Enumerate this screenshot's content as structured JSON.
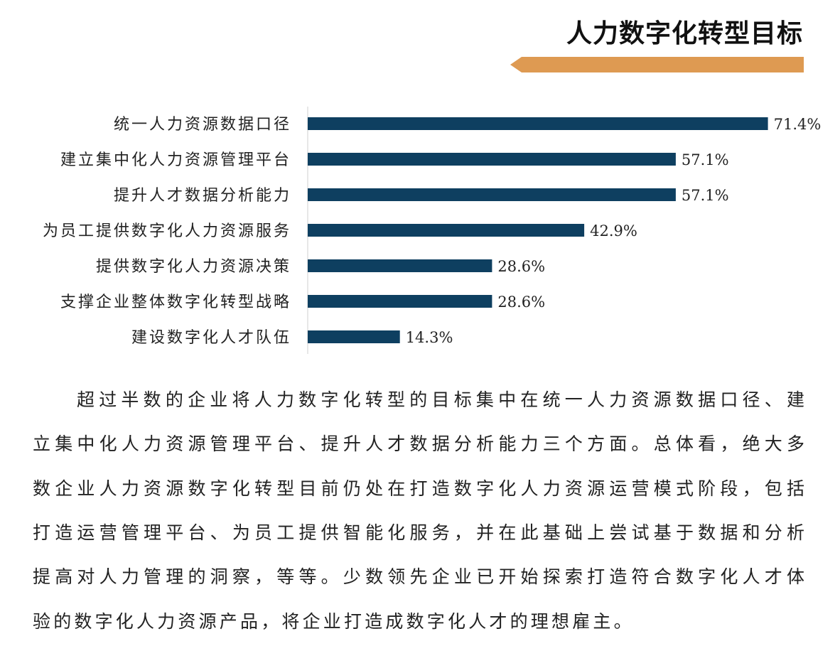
{
  "header": {
    "title": "人力数字化转型目标",
    "accent_color": "#DE9A52"
  },
  "chart_data": {
    "type": "bar",
    "orientation": "horizontal",
    "categories": [
      "统一人力资源数据口径",
      "建立集中化人力资源管理平台",
      "提升人才数据分析能力",
      "为员工提供数字化人力资源服务",
      "提供数字化人力资源决策",
      "支撑企业整体数字化转型战略",
      "建设数字化人才队伍"
    ],
    "values": [
      71.4,
      57.1,
      57.1,
      42.9,
      28.6,
      28.6,
      14.3
    ],
    "labels": [
      "71.4%",
      "57.1%",
      "57.1%",
      "42.9%",
      "28.6%",
      "28.6%",
      "14.3%"
    ],
    "unit": "%",
    "xlim": [
      0,
      80
    ],
    "bar_color": "#0E3F60",
    "grid": false,
    "title": "",
    "xlabel": "",
    "ylabel": ""
  },
  "body": {
    "lines": [
      "超过半数的企业将人力数字化转型的目标集中在统一人力资源数据口径、建",
      "立集中化人力资源管理平台、提升人才数据分析能力三个方面。总体看，绝大多",
      "数企业人力资源数字化转型目前仍处在打造数字化人力资源运营模式阶段，包括",
      "打造运营管理平台、为员工提供智能化服务，并在此基础上尝试基于数据和分析",
      "提高对人力管理的洞察，等等。少数领先企业已开始探索打造符合数字化人才体",
      "验的数字化人力资源产品，将企业打造成数字化人才的理想雇主。"
    ]
  }
}
